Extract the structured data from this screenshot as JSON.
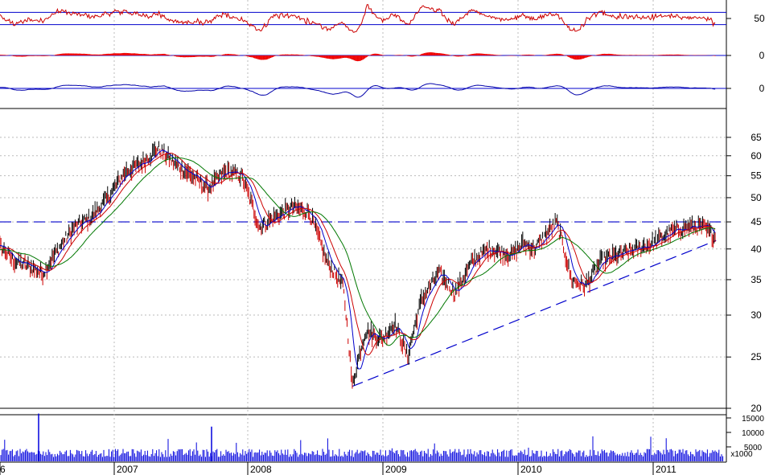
{
  "colors": {
    "price_bar": "#000000",
    "price_down": "#cc0000",
    "ma_short": "#cc0000",
    "ma_mid": "#0000cc",
    "ma_long": "#007700",
    "rsi_line": "#cc0000",
    "macd_hist": "#ee0000",
    "osc_line": "#0000aa",
    "volume": "#0000dd",
    "guide": "#0000cc",
    "grid": "#bbbbbb"
  },
  "chart_data": {
    "type": "line",
    "x_axis": {
      "year_labels": [
        "6",
        "2007",
        "2008",
        "2009",
        "2010",
        "2011"
      ]
    },
    "panels": {
      "rsi": {
        "tick_labels": [
          "50"
        ],
        "band_levels": [
          30,
          70
        ],
        "range": [
          0,
          100
        ]
      },
      "macd": {
        "tick_labels": [
          "0"
        ]
      },
      "oscillator": {
        "tick_labels": [
          "0"
        ]
      },
      "price": {
        "scale": "log",
        "range": [
          20,
          68
        ],
        "tick_labels": [
          "20",
          "25",
          "30",
          "35",
          "40",
          "45",
          "50",
          "55",
          "60",
          "65"
        ],
        "resistance_level": 45,
        "support_line": {
          "from": {
            "date": "2008-10-10",
            "value": 22
          },
          "to": {
            "date": "2011-06-20",
            "value": 41.5
          }
        },
        "series": [
          {
            "x": [
              "2006-01-02",
              "2006-02-15",
              "2006-04-01",
              "2006-05-15",
              "2006-06-20",
              "2006-08-01",
              "2006-09-15",
              "2006-11-01",
              "2006-12-15",
              "2007-02-01",
              "2007-03-15",
              "2007-05-01",
              "2007-06-15",
              "2007-08-01",
              "2007-09-15",
              "2007-11-01",
              "2007-12-15",
              "2008-02-01",
              "2008-03-15",
              "2008-05-01",
              "2008-06-15",
              "2008-08-01",
              "2008-09-15",
              "2008-10-10",
              "2008-11-15",
              "2008-12-31",
              "2009-02-01",
              "2009-03-09",
              "2009-04-15",
              "2009-06-01",
              "2009-07-15",
              "2009-09-01",
              "2009-10-15",
              "2009-12-15",
              "2010-01-15",
              "2010-02-15",
              "2010-04-15",
              "2010-05-25",
              "2010-07-01",
              "2010-08-15",
              "2010-10-01",
              "2010-11-15",
              "2011-01-01",
              "2011-02-15",
              "2011-04-01",
              "2011-05-15",
              "2011-06-20"
            ],
            "values": [
              38,
              41,
              38,
              37,
              36,
              40,
              44,
              46,
              50,
              56,
              58,
              62,
              58,
              55,
              52,
              56,
              55,
              44,
              46,
              48,
              47,
              38,
              34,
              22,
              28,
              27,
              29,
              25,
              32,
              36,
              33,
              38,
              40,
              39,
              41,
              40,
              45,
              35,
              34,
              38,
              39,
              40,
              41,
              43,
              44,
              44,
              42
            ]
          }
        ]
      },
      "volume": {
        "tick_labels": [
          "15000",
          "10000",
          "5000"
        ],
        "unit_label": "x1000"
      }
    }
  }
}
